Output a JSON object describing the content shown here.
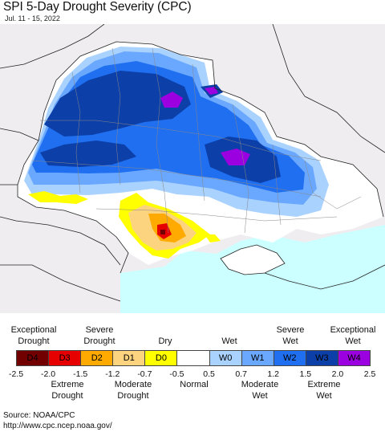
{
  "header": {
    "title": "SPI 5-Day Drought Severity (CPC)",
    "subtitle": "Jul. 11 - 15, 2022"
  },
  "colors": {
    "land_outside": "#efedf0",
    "sea": "#ccffff",
    "normal": "#ffffff",
    "D4": "#730000",
    "D3": "#e60000",
    "D2": "#ffaa00",
    "D1": "#fcd37f",
    "D0": "#ffff00",
    "W0": "#aad2ff",
    "W1": "#6aa8ff",
    "W2": "#1f6ff0",
    "W3": "#0c3fa8",
    "W4": "#9b00e0"
  },
  "legend": {
    "top_labels": [
      {
        "id": "exceptional-drought",
        "text": "Exceptional\nDrought"
      },
      {
        "id": "severe-drought",
        "text": "Severe\nDrought"
      },
      {
        "id": "dry",
        "text": "Dry"
      },
      {
        "id": "wet",
        "text": "Wet"
      },
      {
        "id": "severe-wet",
        "text": "Severe\nWet"
      },
      {
        "id": "exceptional-wet",
        "text": "Exceptional\nWet"
      }
    ],
    "categories": [
      {
        "code": "D4",
        "color": "#730000"
      },
      {
        "code": "D3",
        "color": "#e60000"
      },
      {
        "code": "D2",
        "color": "#ffaa00"
      },
      {
        "code": "D1",
        "color": "#fcd37f"
      },
      {
        "code": "D0",
        "color": "#ffff00"
      },
      {
        "code": "",
        "color": "#ffffff"
      },
      {
        "code": "W0",
        "color": "#aad2ff"
      },
      {
        "code": "W1",
        "color": "#6aa8ff"
      },
      {
        "code": "W2",
        "color": "#1f6ff0"
      },
      {
        "code": "W3",
        "color": "#0c3fa8"
      },
      {
        "code": "W4",
        "color": "#9b00e0"
      }
    ],
    "ticks": [
      "-2.5",
      "-2.0",
      "-1.5",
      "-1.2",
      "-0.7",
      "-0.5",
      "0.5",
      "0.7",
      "1.2",
      "1.5",
      "2.0",
      "2.5"
    ],
    "bottom_labels": [
      {
        "id": "extreme-drought",
        "text": "Extreme\nDrought"
      },
      {
        "id": "moderate-drought",
        "text": "Moderate\nDrought"
      },
      {
        "id": "normal",
        "text": "Normal"
      },
      {
        "id": "moderate-wet",
        "text": "Moderate\nWet"
      },
      {
        "id": "extreme-wet",
        "text": "Extreme\nWet"
      }
    ]
  },
  "footer": {
    "source": "Source: NOAA/CPC",
    "url": "http://www.cpc.ncep.noaa.gov/"
  }
}
